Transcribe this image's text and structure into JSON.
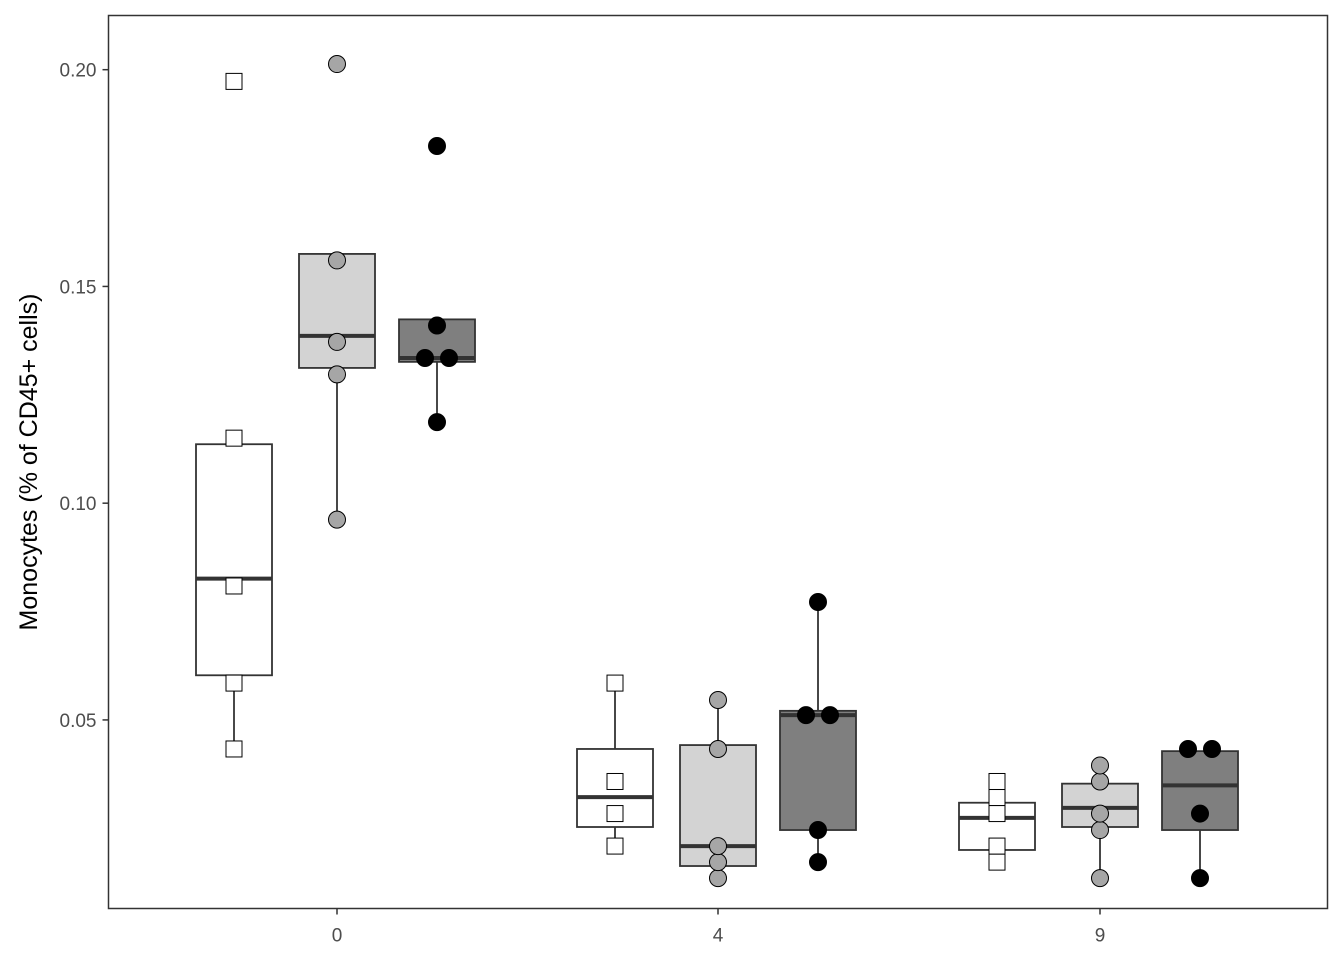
{
  "chart_data": {
    "type": "box",
    "title": "",
    "xlabel": "",
    "ylabel": "Monocytes (% of CD45+ cells)",
    "categories": [
      "0",
      "4",
      "9"
    ],
    "y_ticks": [
      {
        "value": 0.05,
        "label": "0.05"
      },
      {
        "value": 0.1,
        "label": "0.10"
      },
      {
        "value": 0.15,
        "label": "0.15"
      },
      {
        "value": 0.2,
        "label": "0.20"
      }
    ],
    "ylim": [
      0.0065,
      0.2125
    ],
    "grid": false,
    "legend": "none",
    "series": [
      {
        "fill": "#ffffff",
        "marker": "square",
        "marker_fill": "#ffffff",
        "groups": [
          {
            "category": "0",
            "q1": 0.0603,
            "median": 0.0826,
            "q3": 0.1136,
            "whisker_low": 0.0433,
            "whisker_high": 0.1136,
            "points": [
              0.0433,
              0.0585,
              0.0809,
              0.115
            ],
            "outliers": [
              0.1973
            ]
          },
          {
            "category": "4",
            "q1": 0.0253,
            "median": 0.0322,
            "q3": 0.0433,
            "whisker_low": 0.0209,
            "whisker_high": 0.0585,
            "points": [
              0.0209,
              0.0284,
              0.0358,
              0.0585
            ],
            "outliers": []
          },
          {
            "category": "9",
            "q1": 0.02,
            "median": 0.0274,
            "q3": 0.0309,
            "whisker_low": 0.0172,
            "whisker_high": 0.0358,
            "points": [
              0.0172,
              0.0209,
              0.0284,
              0.0321,
              0.0358
            ],
            "outliers": []
          }
        ]
      },
      {
        "fill": "#d3d3d3",
        "marker": "circle",
        "marker_fill": "#a6a6a6",
        "groups": [
          {
            "category": "0",
            "q1": 0.1312,
            "median": 0.1386,
            "q3": 0.1575,
            "whisker_low": 0.0962,
            "whisker_high": 0.1575,
            "points": [
              0.0962,
              0.1297,
              0.1372,
              0.156
            ],
            "outliers": [
              0.2013
            ]
          },
          {
            "category": "4",
            "q1": 0.0163,
            "median": 0.0209,
            "q3": 0.0442,
            "whisker_low": 0.0135,
            "whisker_high": 0.0546,
            "points": [
              0.0135,
              0.0172,
              0.0209,
              0.0433,
              0.0546
            ],
            "outliers": []
          },
          {
            "category": "9",
            "q1": 0.0253,
            "median": 0.0297,
            "q3": 0.0353,
            "whisker_low": 0.0135,
            "whisker_high": 0.0395,
            "points": [
              0.0135,
              0.0246,
              0.0284,
              0.0358,
              0.0395
            ],
            "outliers": []
          }
        ]
      },
      {
        "fill": "#7f7f7f",
        "marker": "circle",
        "marker_fill": "#000000",
        "groups": [
          {
            "category": "0",
            "q1": 0.1326,
            "median": 0.1335,
            "q3": 0.1424,
            "whisker_low": 0.1187,
            "whisker_high": 0.1424,
            "points": [
              0.1187,
              0.1335,
              0.1335,
              0.141
            ],
            "outliers": [
              0.1824
            ]
          },
          {
            "category": "4",
            "q1": 0.0246,
            "median": 0.0511,
            "q3": 0.0521,
            "whisker_low": 0.0172,
            "whisker_high": 0.0772,
            "points": [
              0.0172,
              0.0246,
              0.0511,
              0.0511,
              0.0772
            ],
            "outliers": []
          },
          {
            "category": "9",
            "q1": 0.0246,
            "median": 0.0349,
            "q3": 0.0428,
            "whisker_low": 0.0135,
            "whisker_high": 0.0428,
            "points": [
              0.0135,
              0.0284,
              0.0433,
              0.0433
            ],
            "outliers": []
          }
        ]
      }
    ]
  }
}
